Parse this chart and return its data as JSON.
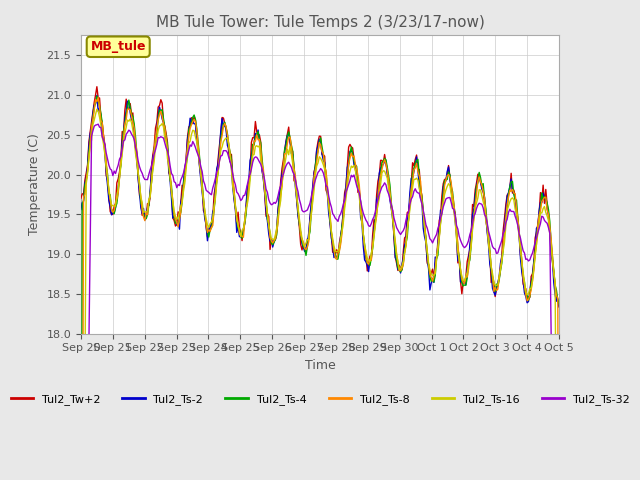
{
  "title": "MB Tule Tower: Tule Temps 2 (3/23/17-now)",
  "xlabel": "Time",
  "ylabel": "Temperature (C)",
  "ylim": [
    18.0,
    21.75
  ],
  "yticks": [
    18.0,
    18.5,
    19.0,
    19.5,
    20.0,
    20.5,
    21.0,
    21.5
  ],
  "xtick_labels": [
    "Sep 20",
    "Sep 21",
    "Sep 22",
    "Sep 23",
    "Sep 24",
    "Sep 25",
    "Sep 26",
    "Sep 27",
    "Sep 28",
    "Sep 29",
    "Sep 30",
    "Oct 1",
    "Oct 2",
    "Oct 3",
    "Oct 4",
    "Oct 5"
  ],
  "background_color": "#e8e8e8",
  "plot_bg_color": "#ffffff",
  "series": [
    {
      "name": "Tul2_Tw+2",
      "color": "#cc0000"
    },
    {
      "name": "Tul2_Ts-2",
      "color": "#0000cc"
    },
    {
      "name": "Tul2_Ts-4",
      "color": "#00aa00"
    },
    {
      "name": "Tul2_Ts-8",
      "color": "#ff8800"
    },
    {
      "name": "Tul2_Ts-16",
      "color": "#cccc00"
    },
    {
      "name": "Tul2_Ts-32",
      "color": "#9900cc"
    }
  ],
  "annotation_text": "MB_tule",
  "n_days": 15
}
